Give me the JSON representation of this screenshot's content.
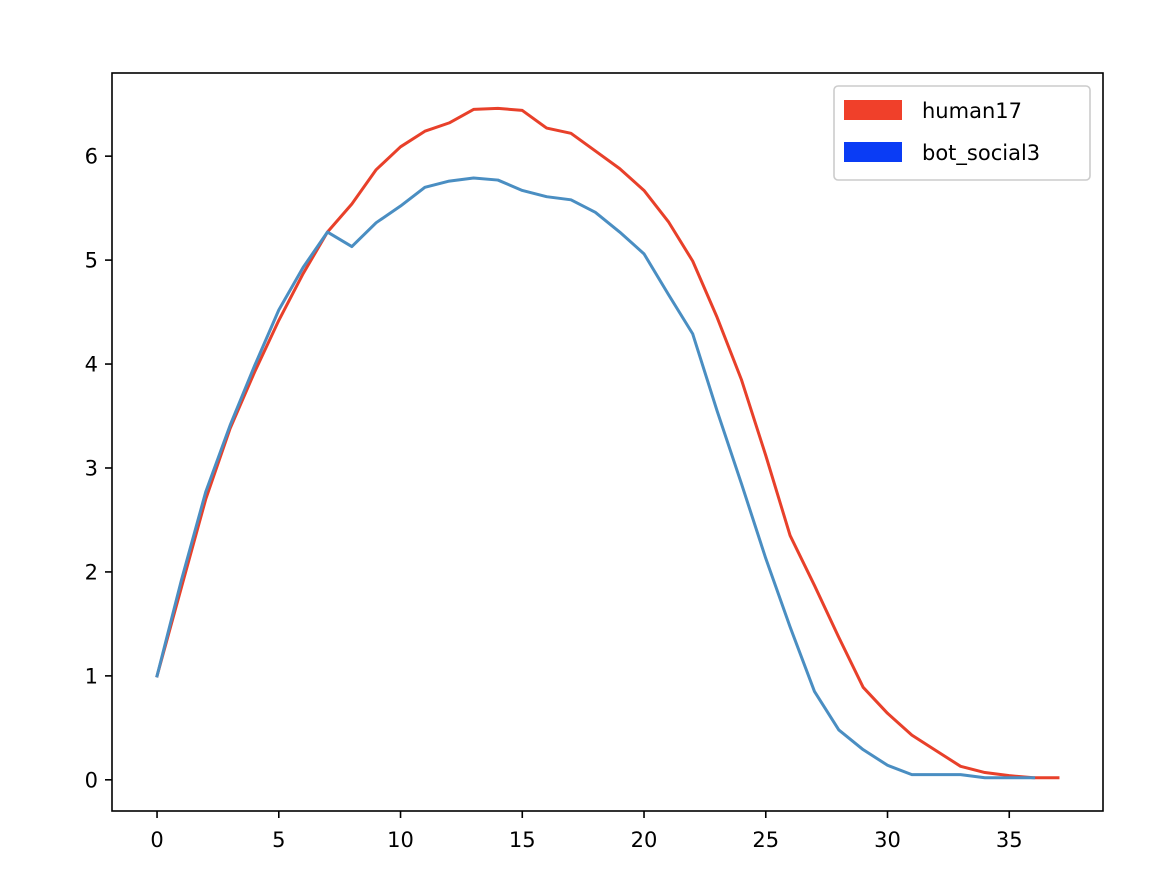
{
  "chart_data": {
    "type": "line",
    "title": "",
    "xlabel": "",
    "ylabel": "",
    "xlim": [
      -1.85,
      38.85
    ],
    "ylim": [
      -0.3,
      6.8
    ],
    "xticks": [
      0,
      5,
      10,
      15,
      20,
      25,
      30,
      35
    ],
    "yticks": [
      0,
      1,
      2,
      3,
      4,
      5,
      6
    ],
    "grid": false,
    "legend_position": "top-right",
    "series": [
      {
        "name": "human17",
        "color": "#e8402a",
        "legend_color": "#f0402a",
        "x": [
          0,
          1,
          2,
          3,
          4,
          5,
          6,
          7,
          8,
          9,
          10,
          11,
          12,
          13,
          14,
          15,
          16,
          17,
          18,
          19,
          20,
          21,
          22,
          23,
          24,
          25,
          26,
          27,
          28,
          29,
          30,
          31,
          32,
          33,
          34,
          35,
          36,
          37
        ],
        "values": [
          1.0,
          1.85,
          2.7,
          3.38,
          3.92,
          4.42,
          4.87,
          5.27,
          5.54,
          5.87,
          6.09,
          6.24,
          6.32,
          6.45,
          6.46,
          6.44,
          6.27,
          6.22,
          6.05,
          5.88,
          5.67,
          5.37,
          4.99,
          4.45,
          3.85,
          3.12,
          2.35,
          1.87,
          1.37,
          0.89,
          0.64,
          0.43,
          0.28,
          0.13,
          0.07,
          0.04,
          0.02,
          0.02
        ]
      },
      {
        "name": "bot_social3",
        "color": "#4a8ec2",
        "legend_color": "#0a3cf5",
        "x": [
          0,
          1,
          2,
          3,
          4,
          5,
          6,
          7,
          8,
          9,
          10,
          11,
          12,
          13,
          14,
          15,
          16,
          17,
          18,
          19,
          20,
          21,
          22,
          23,
          24,
          25,
          26,
          27,
          28,
          29,
          30,
          31,
          32,
          33,
          34,
          35,
          36
        ],
        "values": [
          1.0,
          1.92,
          2.77,
          3.41,
          3.98,
          4.52,
          4.93,
          5.27,
          5.13,
          5.36,
          5.52,
          5.7,
          5.76,
          5.79,
          5.77,
          5.67,
          5.61,
          5.58,
          5.46,
          5.27,
          5.06,
          4.67,
          4.29,
          3.55,
          2.85,
          2.13,
          1.47,
          0.85,
          0.48,
          0.29,
          0.14,
          0.05,
          0.05,
          0.05,
          0.02,
          0.02,
          0.02
        ]
      }
    ]
  }
}
